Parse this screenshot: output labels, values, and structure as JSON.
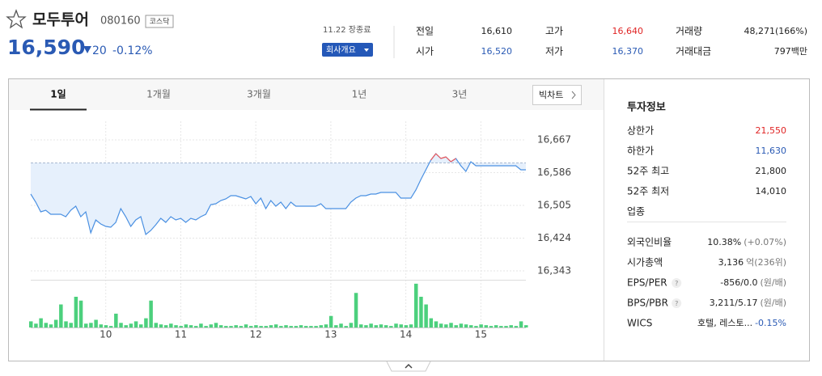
{
  "header": {
    "name": "모두투어",
    "code": "080160",
    "market": "코스닥",
    "price": "16,590",
    "change": "20",
    "change_pct": "-0.12%",
    "status": "11.22 장종료",
    "company_button": "회사개요"
  },
  "summary": [
    {
      "label": "전일",
      "value": "16,610",
      "color": "#222222"
    },
    {
      "label": "시가",
      "value": "16,520",
      "color": "#2a5ab4"
    },
    {
      "label": "고가",
      "value": "16,640",
      "color": "#e02424"
    },
    {
      "label": "저가",
      "value": "16,370",
      "color": "#2a5ab4"
    },
    {
      "label": "거래량",
      "value": "48,271(166%)",
      "color": "#222222"
    },
    {
      "label": "거래대금",
      "value": "797백만",
      "color": "#222222"
    }
  ],
  "tabs": {
    "items": [
      "1일",
      "1개월",
      "3개월",
      "1년",
      "3년"
    ],
    "active": 0,
    "big_chart": "빅차트"
  },
  "chart_data": {
    "type": "line",
    "color": "#4a90e2",
    "up_color": "#f05a5a",
    "fill": "#e6f0fc",
    "volume_color": "#4cd07d",
    "ylim": [
      16323,
      16713
    ],
    "yticks": [
      {
        "value": 16667,
        "label": "16,667"
      },
      {
        "value": 16586,
        "label": "16,586"
      },
      {
        "value": 16505,
        "label": "16,505"
      },
      {
        "value": 16424,
        "label": "16,424"
      },
      {
        "value": 16343,
        "label": "16,343"
      }
    ],
    "xlim": [
      0,
      99
    ],
    "xticks": [
      {
        "value": 15,
        "label": "10"
      },
      {
        "value": 30,
        "label": "11"
      },
      {
        "value": 45,
        "label": "12"
      },
      {
        "value": 60,
        "label": "13"
      },
      {
        "value": 75,
        "label": "14"
      },
      {
        "value": 90,
        "label": "15"
      }
    ],
    "base": 16610,
    "values": [
      16533,
      16513,
      16489,
      16493,
      16483,
      16483,
      16483,
      16477,
      16493,
      16503,
      16477,
      16489,
      16437,
      16469,
      16459,
      16453,
      16451,
      16463,
      16497,
      16477,
      16453,
      16469,
      16477,
      16433,
      16443,
      16457,
      16473,
      16463,
      16477,
      16469,
      16473,
      16463,
      16473,
      16469,
      16477,
      16483,
      16507,
      16509,
      16517,
      16521,
      16529,
      16529,
      16525,
      16521,
      16527,
      16509,
      16523,
      16497,
      16517,
      16503,
      16513,
      16497,
      16513,
      16503,
      16503,
      16503,
      16503,
      16503,
      16509,
      16497,
      16497,
      16497,
      16497,
      16497,
      16513,
      16523,
      16529,
      16529,
      16533,
      16533,
      16537,
      16537,
      16537,
      16537,
      16523,
      16523,
      16523,
      16543,
      16569,
      16593,
      16617,
      16633,
      16621,
      16625,
      16613,
      16621,
      16603,
      16589,
      16613,
      16603,
      16603,
      16603,
      16603,
      16603,
      16603,
      16603,
      16603,
      16603,
      16593,
      16593
    ],
    "volume_lim": [
      0,
      60
    ],
    "volume": [
      8,
      5,
      12,
      6,
      4,
      10,
      30,
      8,
      6,
      40,
      35,
      5,
      6,
      10,
      4,
      3,
      2,
      18,
      6,
      3,
      5,
      8,
      4,
      12,
      35,
      6,
      4,
      3,
      5,
      3,
      2,
      4,
      3,
      2,
      5,
      2,
      4,
      6,
      3,
      2,
      2,
      3,
      2,
      4,
      2,
      3,
      2,
      2,
      3,
      4,
      2,
      3,
      2,
      2,
      3,
      2,
      2,
      2,
      3,
      4,
      15,
      3,
      5,
      2,
      6,
      45,
      4,
      3,
      5,
      3,
      4,
      3,
      2,
      5,
      4,
      3,
      4,
      57,
      40,
      30,
      12,
      8,
      5,
      4,
      6,
      3,
      5,
      4,
      3,
      2,
      4,
      3,
      2,
      3,
      2,
      2,
      3,
      2,
      8,
      3
    ]
  },
  "info": {
    "title": "투자정보",
    "groups": [
      [
        {
          "label": "상한가",
          "value": "21,550",
          "color": "#e02424"
        },
        {
          "label": "하한가",
          "value": "11,630",
          "color": "#2a5ab4"
        },
        {
          "label": "52주 최고",
          "value": "21,800",
          "color": "#222222"
        },
        {
          "label": "52주 최저",
          "value": "14,010",
          "color": "#222222"
        },
        {
          "label": "업종"
        }
      ],
      [
        {
          "label": "외국인비율",
          "value": "10.38%",
          "note": "(+0.07%)",
          "color": "#222222",
          "note_color": "#777777"
        },
        {
          "label": "시가총액",
          "value": "3,136",
          "note": "억(236위)",
          "color": "#222222",
          "note_color": "#777777"
        },
        {
          "label": "EPS/PER",
          "help": "?",
          "value": "-856/0.0",
          "note": "(원/배)",
          "color": "#222222",
          "note_color": "#777777"
        },
        {
          "label": "BPS/PBR",
          "help": "?",
          "value": "3,211/5.17",
          "note": "(원/배)",
          "color": "#222222",
          "note_color": "#777777"
        },
        {
          "label": "WICS",
          "value": "호텔, 레스토...",
          "note": "-0.15%",
          "color": "#222222",
          "note_color": "#2a5ab4"
        }
      ]
    ]
  }
}
